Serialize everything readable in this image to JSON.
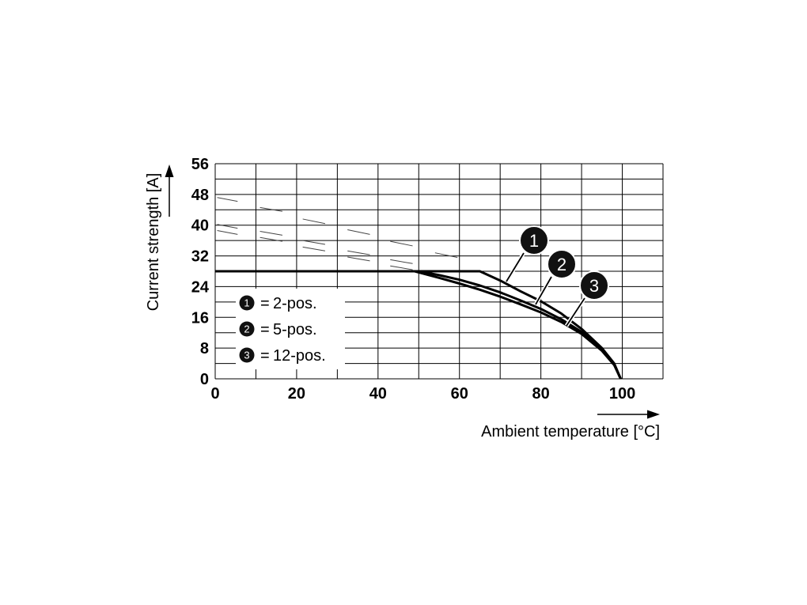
{
  "chart_data": {
    "type": "line",
    "xlabel": "Ambient temperature [°C]",
    "ylabel": "Current strength [A]",
    "xlim": [
      0,
      110
    ],
    "ylim": [
      0,
      56
    ],
    "xticks": [
      0,
      20,
      40,
      60,
      80,
      100
    ],
    "yticks": [
      0,
      8,
      16,
      24,
      32,
      40,
      48,
      56
    ],
    "grid": true,
    "legend_position": "bottom-left",
    "series": [
      {
        "marker": "1",
        "name": "2-pos.",
        "x": [
          0,
          10,
          20,
          30,
          40,
          50,
          60,
          65,
          70,
          75,
          80,
          85,
          90,
          95,
          98,
          99.6
        ],
        "y": [
          28,
          28,
          28,
          28,
          28,
          28,
          28,
          28,
          25.6,
          22.8,
          20.2,
          17,
          13,
          8,
          4,
          0
        ]
      },
      {
        "marker": "2",
        "name": "5-pos.",
        "x": [
          0,
          10,
          20,
          30,
          40,
          50,
          55,
          60,
          65,
          70,
          75,
          80,
          85,
          90,
          95,
          98,
          99.6
        ],
        "y": [
          28,
          28,
          28,
          28,
          28,
          28,
          27,
          25.8,
          24.3,
          22.5,
          20.4,
          18.2,
          15.5,
          12.2,
          7.6,
          3.8,
          0
        ]
      },
      {
        "marker": "3",
        "name": "12-pos.",
        "x": [
          0,
          10,
          20,
          30,
          40,
          49,
          55,
          60,
          65,
          70,
          75,
          80,
          85,
          90,
          95,
          98,
          99.6
        ],
        "y": [
          28,
          28,
          28,
          28,
          28,
          28,
          26.3,
          24.8,
          23.2,
          21.4,
          19.4,
          17.3,
          14.8,
          11.7,
          7.3,
          3.6,
          0
        ]
      }
    ]
  }
}
